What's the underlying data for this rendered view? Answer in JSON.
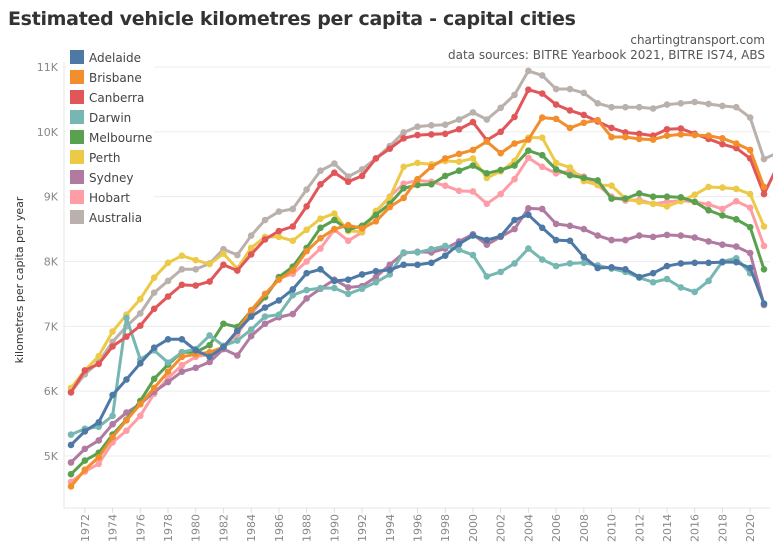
{
  "header": {
    "title": "Estimated vehicle kilometres per capita - capital cities",
    "site": "chartingtransport.com",
    "sources": "data sources: BITRE Yearbook 2021, BITRE IS74, ABS"
  },
  "chart_data": {
    "type": "line",
    "title": "Estimated vehicle kilometres per capita - capital cities",
    "xlabel": "",
    "ylabel": "kilometres per capita per year",
    "xlim": [
      1971,
      2021
    ],
    "ylim": [
      4400,
      11100
    ],
    "y_ticks": [
      5000,
      6000,
      7000,
      8000,
      9000,
      10000,
      11000
    ],
    "y_tick_labels": [
      "5K",
      "6K",
      "7K",
      "8K",
      "9K",
      "10K",
      "11K"
    ],
    "x_ticks": [
      1972,
      1974,
      1976,
      1978,
      1980,
      1982,
      1984,
      1986,
      1988,
      1990,
      1992,
      1994,
      1996,
      1998,
      2000,
      2002,
      2004,
      2006,
      2008,
      2010,
      2012,
      2014,
      2016,
      2018,
      2020
    ],
    "grid": true,
    "legend_position": "top-left",
    "x_start": 1971,
    "series": [
      {
        "name": "Adelaide",
        "color": "#4e79a7",
        "values": [
          5170,
          5380,
          5520,
          5940,
          6180,
          6430,
          6670,
          6800,
          6800,
          6630,
          6530,
          6680,
          6930,
          7150,
          7290,
          7400,
          7570,
          7820,
          7880,
          7700,
          7720,
          7800,
          7850,
          7870,
          7950,
          7950,
          7980,
          8090,
          8270,
          8400,
          8330,
          8390,
          8640,
          8720,
          8520,
          8330,
          8320,
          8070,
          7900,
          7910,
          7880,
          7760,
          7820,
          7930,
          7970,
          7980,
          7980,
          7990,
          7990,
          7900,
          7350
        ]
      },
      {
        "name": "Brisbane",
        "color": "#f28e2b",
        "values": [
          4530,
          4790,
          4980,
          5290,
          5550,
          5800,
          6050,
          6300,
          6530,
          6570,
          6600,
          6680,
          6930,
          7250,
          7500,
          7720,
          7860,
          8160,
          8360,
          8500,
          8560,
          8510,
          8620,
          8840,
          8980,
          9270,
          9460,
          9590,
          9660,
          9720,
          9850,
          9670,
          9820,
          9880,
          10220,
          10200,
          10060,
          10140,
          10180,
          9920,
          9920,
          9890,
          9880,
          9940,
          9960,
          9950,
          9940,
          9900,
          9820,
          9720,
          9150
        ]
      },
      {
        "name": "Canberra",
        "color": "#e15759",
        "values": [
          5980,
          6320,
          6420,
          6690,
          6840,
          7010,
          7270,
          7460,
          7640,
          7630,
          7690,
          7950,
          7860,
          8110,
          8340,
          8470,
          8540,
          8850,
          9190,
          9370,
          9230,
          9320,
          9590,
          9740,
          9900,
          9950,
          9960,
          9970,
          10040,
          10150,
          9870,
          10000,
          10230,
          10650,
          10590,
          10420,
          10330,
          10260,
          10160,
          10060,
          9990,
          9970,
          9940,
          10040,
          10050,
          9970,
          9890,
          9810,
          9750,
          9590,
          9040,
          9480
        ]
      },
      {
        "name": "Darwin",
        "color": "#76b7b2",
        "values": [
          5330,
          5420,
          5450,
          5620,
          7130,
          6490,
          6630,
          6440,
          6600,
          6650,
          6860,
          6700,
          6780,
          6950,
          7150,
          7180,
          7480,
          7560,
          7590,
          7590,
          7500,
          7580,
          7680,
          7800,
          8140,
          8140,
          8190,
          8240,
          8180,
          8100,
          7770,
          7840,
          7970,
          8200,
          8030,
          7930,
          7970,
          7980,
          7940,
          7890,
          7840,
          7750,
          7680,
          7730,
          7600,
          7530,
          7700,
          8000,
          8050,
          7820
        ]
      },
      {
        "name": "Melbourne",
        "color": "#59a14f",
        "values": [
          4720,
          4930,
          5050,
          5330,
          5560,
          5850,
          6190,
          6410,
          6600,
          6600,
          6710,
          7040,
          6990,
          7240,
          7450,
          7760,
          7920,
          8210,
          8520,
          8640,
          8490,
          8550,
          8720,
          8890,
          9130,
          9180,
          9190,
          9320,
          9400,
          9480,
          9360,
          9410,
          9480,
          9710,
          9640,
          9420,
          9330,
          9290,
          9250,
          8970,
          8970,
          9050,
          9000,
          9000,
          8990,
          8920,
          8790,
          8710,
          8650,
          8530,
          7880
        ]
      },
      {
        "name": "Perth",
        "color": "#edc948",
        "values": [
          6050,
          6320,
          6540,
          6920,
          7180,
          7420,
          7750,
          7980,
          8090,
          8020,
          7960,
          8120,
          7890,
          8210,
          8380,
          8380,
          8320,
          8490,
          8660,
          8740,
          8470,
          8460,
          8780,
          8990,
          9460,
          9520,
          9500,
          9550,
          9540,
          9590,
          9290,
          9390,
          9550,
          9910,
          9910,
          9520,
          9450,
          9240,
          9180,
          9170,
          8970,
          8920,
          8890,
          8850,
          8930,
          9030,
          9150,
          9140,
          9120,
          9040,
          8540
        ]
      },
      {
        "name": "Sydney",
        "color": "#b07aa1",
        "values": [
          4900,
          5110,
          5240,
          5490,
          5670,
          5800,
          5990,
          6140,
          6300,
          6360,
          6450,
          6650,
          6550,
          6850,
          7040,
          7140,
          7190,
          7430,
          7580,
          7720,
          7600,
          7620,
          7760,
          7950,
          8130,
          8150,
          8140,
          8200,
          8310,
          8420,
          8260,
          8380,
          8500,
          8820,
          8810,
          8580,
          8550,
          8500,
          8400,
          8330,
          8330,
          8400,
          8380,
          8410,
          8400,
          8370,
          8310,
          8260,
          8230,
          8130,
          7330
        ]
      },
      {
        "name": "Hobart",
        "color": "#ff9da7",
        "values": [
          4600,
          4760,
          4880,
          5210,
          5390,
          5620,
          5960,
          6200,
          6400,
          6530,
          6570,
          6680,
          6880,
          7190,
          7450,
          7740,
          7810,
          8000,
          8200,
          8490,
          8320,
          8450,
          8770,
          9000,
          9200,
          9250,
          9230,
          9170,
          9090,
          9080,
          8890,
          9040,
          9270,
          9600,
          9460,
          9360,
          9390,
          9310,
          9180,
          9000,
          8940,
          8950,
          8890,
          8920,
          8940,
          8920,
          8880,
          8810,
          8930,
          8830,
          8240
        ]
      },
      {
        "name": "Australia",
        "color": "#bab0ac",
        "values": [
          5990,
          6260,
          6450,
          6760,
          7000,
          7200,
          7520,
          7700,
          7880,
          7880,
          7970,
          8190,
          8100,
          8400,
          8640,
          8770,
          8810,
          9110,
          9400,
          9510,
          9310,
          9420,
          9590,
          9780,
          9990,
          10080,
          10100,
          10110,
          10190,
          10300,
          10190,
          10370,
          10570,
          10940,
          10870,
          10660,
          10660,
          10600,
          10440,
          10380,
          10380,
          10380,
          10360,
          10420,
          10440,
          10460,
          10430,
          10400,
          10380,
          10220,
          9580,
          9680
        ]
      }
    ]
  }
}
